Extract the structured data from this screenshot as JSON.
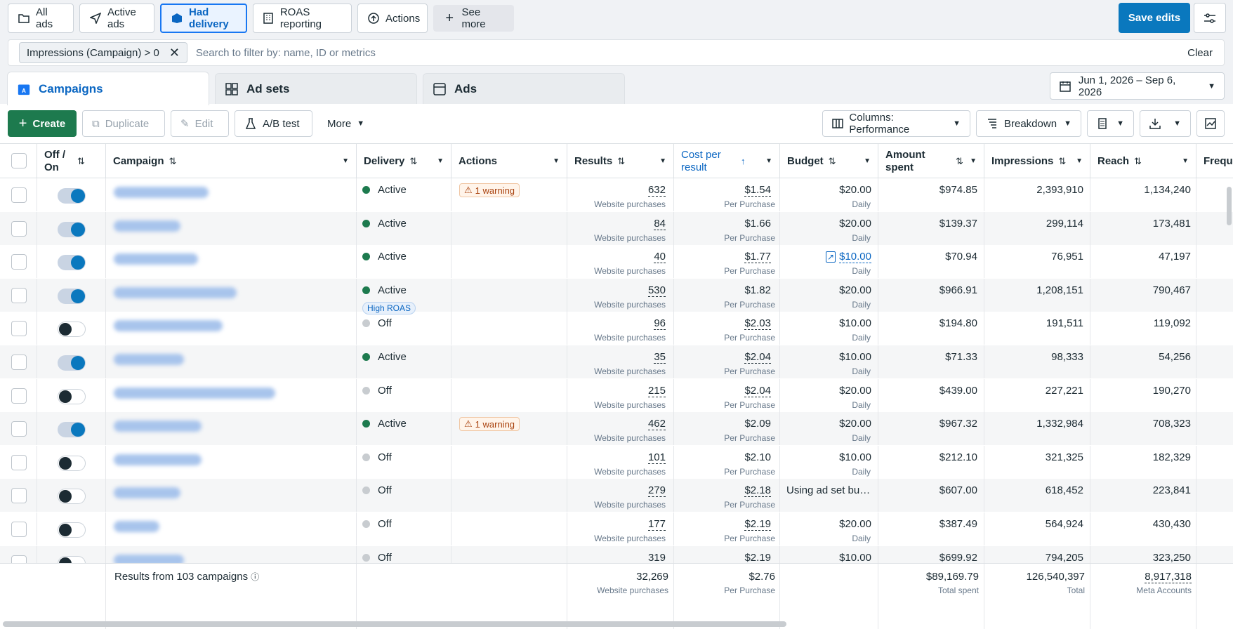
{
  "topbar": {
    "chips": [
      "All ads",
      "Active ads",
      "Had delivery",
      "ROAS reporting",
      "Actions",
      "See more"
    ],
    "save_label": "Save edits"
  },
  "filter": {
    "chip_label": "Impressions (Campaign) > 0",
    "search_placeholder": "Search to filter by: name, ID or metrics",
    "clear_label": "Clear"
  },
  "tabs": [
    "Campaigns",
    "Ad sets",
    "Ads"
  ],
  "date_range": "Jun 1, 2026 – Sep 6, 2026",
  "toolbar": {
    "create": "Create",
    "duplicate": "Duplicate",
    "edit": "Edit",
    "ab_test": "A/B test",
    "more": "More",
    "columns": "Columns: Performance",
    "breakdown": "Breakdown"
  },
  "headers": {
    "offon": "Off / On",
    "campaign": "Campaign",
    "delivery": "Delivery",
    "actions": "Actions",
    "results": "Results",
    "cpr": "Cost per result",
    "budget": "Budget",
    "amount": "Amount spent",
    "impressions": "Impressions",
    "reach": "Reach",
    "freq": "Frequ"
  },
  "rows": [
    {
      "on": true,
      "delivery": "Active",
      "warning": "1 warning",
      "results": "632",
      "results_sub": "Website purchases",
      "cpr": "$1.54",
      "cpr_sub": "Per Purchase",
      "budget": "$20.00",
      "budget_sub": "Daily",
      "spent": "$974.85",
      "impressions": "2,393,910",
      "reach": "1,134,240"
    },
    {
      "on": true,
      "delivery": "Active",
      "warning": "",
      "results": "84",
      "results_sub": "Website purchases",
      "cpr": "$1.66",
      "cpr_sub": "Per Purchase",
      "budget": "$20.00",
      "budget_sub": "Daily",
      "spent": "$139.37",
      "impressions": "299,114",
      "reach": "173,481"
    },
    {
      "on": true,
      "delivery": "Active",
      "warning": "",
      "results": "40",
      "results_sub": "Website purchases",
      "cpr": "$1.77",
      "cpr_sub": "Per Purchase",
      "budget": "$10.00",
      "budget_sub": "Daily",
      "budget_link": true,
      "spent": "$70.94",
      "impressions": "76,951",
      "reach": "47,197"
    },
    {
      "on": true,
      "delivery": "Active",
      "badge": "High ROAS",
      "warning": "",
      "results": "530",
      "results_sub": "Website purchases",
      "cpr": "$1.82",
      "cpr_sub": "Per Purchase",
      "budget": "$20.00",
      "budget_sub": "Daily",
      "spent": "$966.91",
      "impressions": "1,208,151",
      "reach": "790,467"
    },
    {
      "on": false,
      "delivery": "Off",
      "warning": "",
      "results": "96",
      "results_sub": "Website purchases",
      "cpr": "$2.03",
      "cpr_sub": "Per Purchase",
      "budget": "$10.00",
      "budget_sub": "Daily",
      "spent": "$194.80",
      "impressions": "191,511",
      "reach": "119,092"
    },
    {
      "on": true,
      "delivery": "Active",
      "warning": "",
      "results": "35",
      "results_sub": "Website purchases",
      "cpr": "$2.04",
      "cpr_sub": "Per Purchase",
      "budget": "$10.00",
      "budget_sub": "Daily",
      "spent": "$71.33",
      "impressions": "98,333",
      "reach": "54,256"
    },
    {
      "on": false,
      "delivery": "Off",
      "warning": "",
      "results": "215",
      "results_sub": "Website purchases",
      "cpr": "$2.04",
      "cpr_sub": "Per Purchase",
      "budget": "$20.00",
      "budget_sub": "Daily",
      "spent": "$439.00",
      "impressions": "227,221",
      "reach": "190,270"
    },
    {
      "on": true,
      "delivery": "Active",
      "warning": "1 warning",
      "results": "462",
      "results_sub": "Website purchases",
      "cpr": "$2.09",
      "cpr_sub": "Per Purchase",
      "budget": "$20.00",
      "budget_sub": "Daily",
      "spent": "$967.32",
      "impressions": "1,332,984",
      "reach": "708,323"
    },
    {
      "on": false,
      "delivery": "Off",
      "warning": "",
      "results": "101",
      "results_sub": "Website purchases",
      "cpr": "$2.10",
      "cpr_sub": "Per Purchase",
      "budget": "$10.00",
      "budget_sub": "Daily",
      "spent": "$212.10",
      "impressions": "321,325",
      "reach": "182,329"
    },
    {
      "on": false,
      "delivery": "Off",
      "warning": "",
      "results": "279",
      "results_sub": "Website purchases",
      "cpr": "$2.18",
      "cpr_sub": "Per Purchase",
      "budget": "Using ad set bu…",
      "budget_sub": "",
      "spent": "$607.00",
      "impressions": "618,452",
      "reach": "223,841"
    },
    {
      "on": false,
      "delivery": "Off",
      "warning": "",
      "results": "177",
      "results_sub": "Website purchases",
      "cpr": "$2.19",
      "cpr_sub": "Per Purchase",
      "budget": "$20.00",
      "budget_sub": "Daily",
      "spent": "$387.49",
      "impressions": "564,924",
      "reach": "430,430"
    },
    {
      "on": false,
      "delivery": "Off",
      "warning": "",
      "results": "319",
      "results_sub": "",
      "cpr": "$2.19",
      "cpr_sub": "",
      "budget": "$10.00",
      "budget_sub": "",
      "spent": "$699.92",
      "impressions": "794,205",
      "reach": "323,250"
    }
  ],
  "footer": {
    "label": "Results from 103 campaigns",
    "results": "32,269",
    "results_sub": "Website purchases",
    "cpr": "$2.76",
    "cpr_sub": "Per Purchase",
    "spent": "$89,169.79",
    "spent_sub": "Total spent",
    "impressions": "126,540,397",
    "impressions_sub": "Total",
    "reach": "8,917,318",
    "reach_sub": "Meta Accounts"
  },
  "colors": {
    "accent": "#0a78be",
    "create": "#1d7a4e",
    "active_dot": "#1d7a4e",
    "off_dot": "#c8ccd0"
  }
}
